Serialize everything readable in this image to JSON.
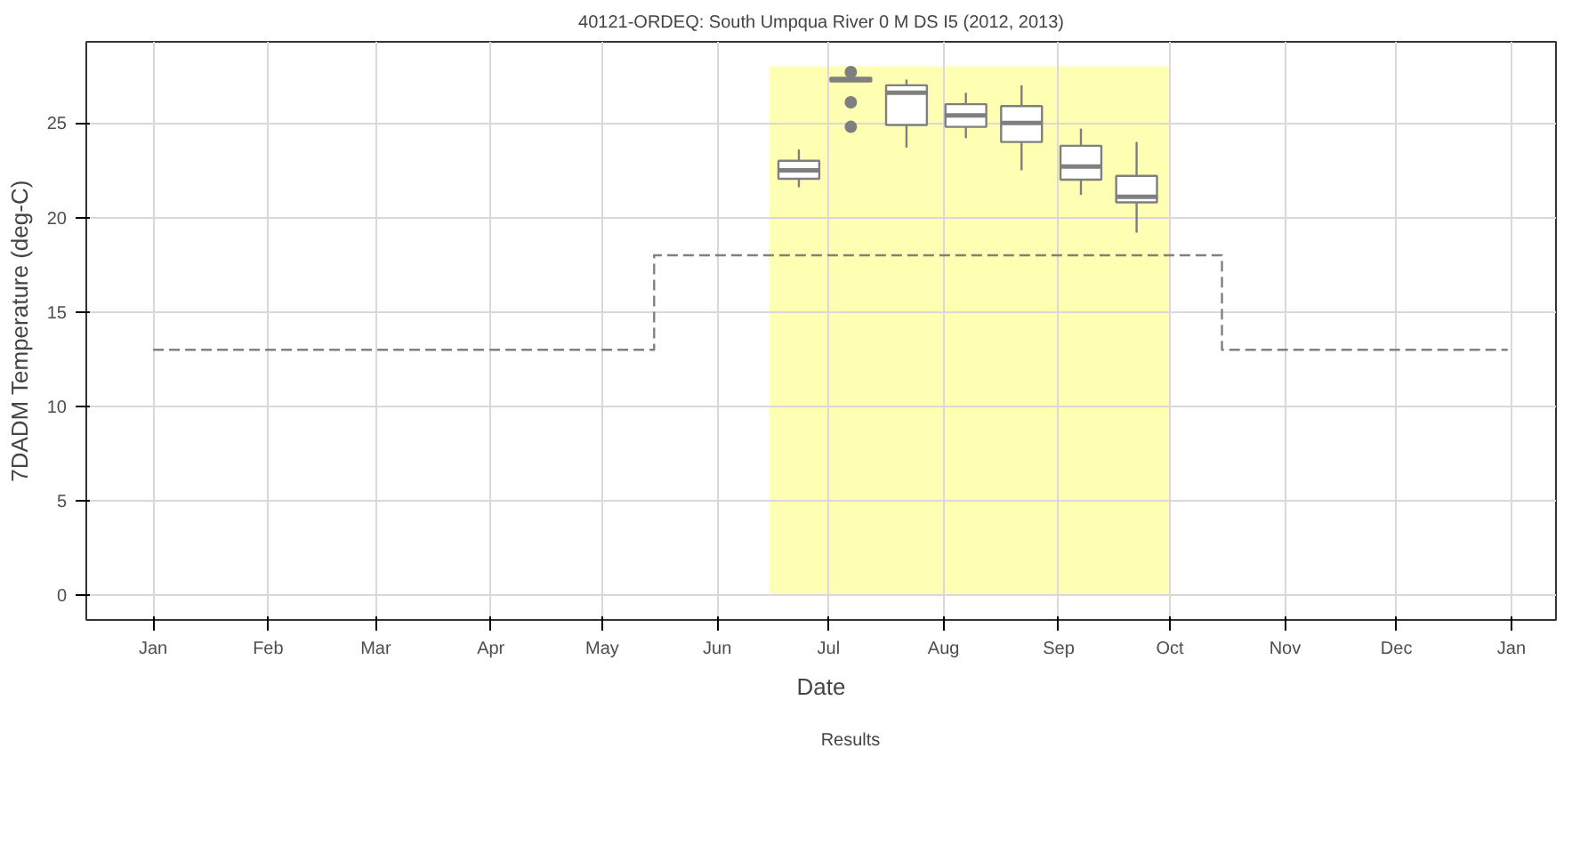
{
  "chart_data": {
    "type": "box",
    "title": "40121-ORDEQ: South Umpqua River 0 M DS I5 (2012, 2013)",
    "xlabel": "Date",
    "ylabel": "7DADM Temperature (deg-C)",
    "xlim": [
      "2011-12-14",
      "2013-01-13"
    ],
    "ylim": [
      -1.3,
      29.3
    ],
    "yticks": [
      0,
      5,
      10,
      15,
      20,
      25
    ],
    "xticks": [
      {
        "value": "2012-01-01",
        "label": "Jan"
      },
      {
        "value": "2012-02-01",
        "label": "Feb"
      },
      {
        "value": "2012-03-01",
        "label": "Mar"
      },
      {
        "value": "2012-04-01",
        "label": "Apr"
      },
      {
        "value": "2012-05-01",
        "label": "May"
      },
      {
        "value": "2012-06-01",
        "label": "Jun"
      },
      {
        "value": "2012-07-01",
        "label": "Jul"
      },
      {
        "value": "2012-08-01",
        "label": "Aug"
      },
      {
        "value": "2012-09-01",
        "label": "Sep"
      },
      {
        "value": "2012-10-01",
        "label": "Oct"
      },
      {
        "value": "2012-11-01",
        "label": "Nov"
      },
      {
        "value": "2012-12-01",
        "label": "Dec"
      },
      {
        "value": "2013-01-01",
        "label": "Jan"
      }
    ],
    "grid": true,
    "legend": "bottom",
    "series": [
      {
        "type": "area",
        "color": "#ffffb3",
        "x": [
          "2012-06-15",
          "2012-10-01"
        ],
        "values": [
          28,
          28
        ]
      },
      {
        "type": "step",
        "color": "#808080",
        "line_style": "dashed",
        "x": [
          "2012-01-01",
          "2012-05-15",
          "2012-10-15",
          "2012-12-31"
        ],
        "values": [
          13,
          18,
          13,
          13
        ]
      },
      {
        "name": "Results",
        "color": "#7f7f7f",
        "x": [
          "2012-06-23",
          "2012-07-07",
          "2012-07-22",
          "2012-08-07",
          "2012-08-22",
          "2012-09-07",
          "2012-09-22"
        ],
        "boxes": [
          {
            "low": 21.6,
            "q1": 22.05,
            "median": 22.5,
            "q3": 23.0,
            "high": 23.6
          },
          {
            "low": 27.2,
            "q1": 27.2,
            "median": 27.3,
            "q3": 27.4,
            "high": 27.4,
            "outliers": [
              27.7,
              26.1,
              24.8
            ]
          },
          {
            "low": 23.7,
            "q1": 24.9,
            "median": 26.6,
            "q3": 27.0,
            "high": 27.3
          },
          {
            "low": 24.2,
            "q1": 24.8,
            "median": 25.4,
            "q3": 26.0,
            "high": 26.6
          },
          {
            "low": 22.5,
            "q1": 24.0,
            "median": 25.0,
            "q3": 25.9,
            "high": 27.0
          },
          {
            "low": 21.2,
            "q1": 22.0,
            "median": 22.7,
            "q3": 23.8,
            "high": 24.7
          },
          {
            "low": 19.2,
            "q1": 20.8,
            "median": 21.1,
            "q3": 22.2,
            "high": 24.0
          }
        ]
      }
    ]
  }
}
